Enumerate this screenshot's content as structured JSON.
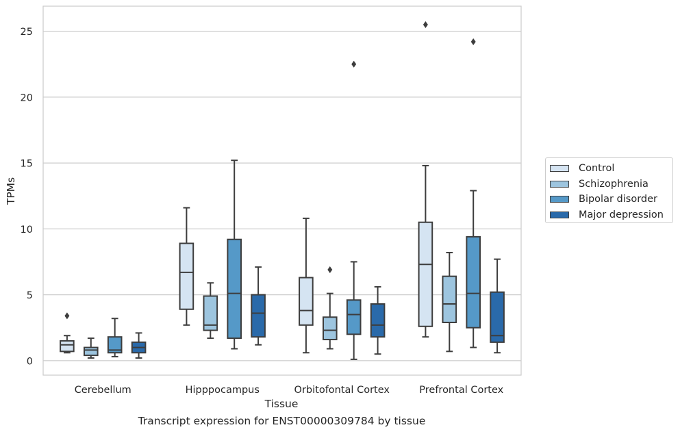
{
  "chart_data": {
    "type": "box",
    "xlabel": "Tissue",
    "ylabel": "TPMs",
    "caption": "Transcript expression for ENST00000309784 by tissue",
    "ylim": [
      -1.1,
      26.9
    ],
    "yticks": [
      0,
      5,
      10,
      15,
      20,
      25
    ],
    "grid": "horizontal",
    "legend_position": "outside-right",
    "categories": [
      "Cerebellum",
      "Hipppocampus",
      "Orbitofontal Cortex",
      "Prefrontal Cortex"
    ],
    "series": [
      {
        "name": "Control",
        "color": "#d5e4f2",
        "boxes": [
          {
            "whisker_low": 0.6,
            "q1": 0.7,
            "median": 1.2,
            "q3": 1.5,
            "whisker_high": 1.9,
            "outliers": [
              3.4
            ]
          },
          {
            "whisker_low": 2.7,
            "q1": 3.9,
            "median": 6.7,
            "q3": 8.9,
            "whisker_high": 11.6,
            "outliers": []
          },
          {
            "whisker_low": 0.6,
            "q1": 2.7,
            "median": 3.8,
            "q3": 6.3,
            "whisker_high": 10.8,
            "outliers": []
          },
          {
            "whisker_low": 1.8,
            "q1": 2.6,
            "median": 7.3,
            "q3": 10.5,
            "whisker_high": 14.8,
            "outliers": [
              25.5
            ]
          }
        ]
      },
      {
        "name": "Schizophrenia",
        "color": "#9dc5df",
        "boxes": [
          {
            "whisker_low": 0.2,
            "q1": 0.4,
            "median": 0.8,
            "q3": 1.0,
            "whisker_high": 1.7,
            "outliers": []
          },
          {
            "whisker_low": 1.7,
            "q1": 2.3,
            "median": 2.7,
            "q3": 4.9,
            "whisker_high": 5.9,
            "outliers": []
          },
          {
            "whisker_low": 0.9,
            "q1": 1.6,
            "median": 2.3,
            "q3": 3.3,
            "whisker_high": 5.1,
            "outliers": [
              6.9
            ]
          },
          {
            "whisker_low": 0.7,
            "q1": 2.9,
            "median": 4.3,
            "q3": 6.4,
            "whisker_high": 8.2,
            "outliers": []
          }
        ]
      },
      {
        "name": "Bipolar disorder",
        "color": "#5599c8",
        "boxes": [
          {
            "whisker_low": 0.3,
            "q1": 0.6,
            "median": 0.8,
            "q3": 1.8,
            "whisker_high": 3.2,
            "outliers": []
          },
          {
            "whisker_low": 0.9,
            "q1": 1.7,
            "median": 5.1,
            "q3": 9.2,
            "whisker_high": 15.2,
            "outliers": []
          },
          {
            "whisker_low": 0.1,
            "q1": 2.0,
            "median": 3.5,
            "q3": 4.6,
            "whisker_high": 7.5,
            "outliers": [
              22.5
            ]
          },
          {
            "whisker_low": 1.0,
            "q1": 2.5,
            "median": 5.1,
            "q3": 9.4,
            "whisker_high": 12.9,
            "outliers": [
              24.2
            ]
          }
        ]
      },
      {
        "name": "Major depression",
        "color": "#2a6aaa",
        "boxes": [
          {
            "whisker_low": 0.2,
            "q1": 0.6,
            "median": 1.0,
            "q3": 1.4,
            "whisker_high": 2.1,
            "outliers": []
          },
          {
            "whisker_low": 1.2,
            "q1": 1.8,
            "median": 3.6,
            "q3": 5.0,
            "whisker_high": 7.1,
            "outliers": []
          },
          {
            "whisker_low": 0.5,
            "q1": 1.8,
            "median": 2.7,
            "q3": 4.3,
            "whisker_high": 5.6,
            "outliers": []
          },
          {
            "whisker_low": 0.6,
            "q1": 1.4,
            "median": 1.9,
            "q3": 5.2,
            "whisker_high": 7.7,
            "outliers": []
          }
        ]
      }
    ]
  }
}
